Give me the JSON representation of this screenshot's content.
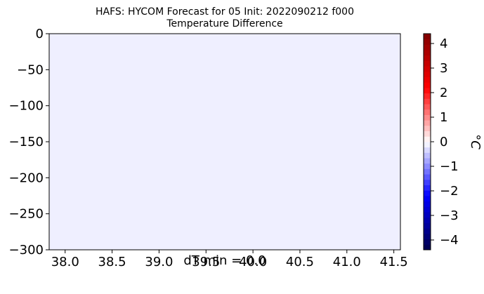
{
  "chart_data": {
    "type": "heatmap",
    "title": "HAFS: HYCOM Forecast for 05 Init: 2022090212 f000",
    "subtitle": "Temperature Difference",
    "xlabel": "dT min = 0.0",
    "ylabel": "",
    "x_ticks": [
      "38.0",
      "38.5",
      "39.0",
      "39.5",
      "40.0",
      "40.5",
      "41.0",
      "41.5"
    ],
    "x_tick_values": [
      38.0,
      38.5,
      39.0,
      39.5,
      40.0,
      40.5,
      41.0,
      41.5
    ],
    "y_ticks": [
      "0",
      "−50",
      "−100",
      "−150",
      "−200",
      "−250",
      "−300"
    ],
    "y_tick_values": [
      0,
      -50,
      -100,
      -150,
      -200,
      -250,
      -300
    ],
    "xlim": [
      37.83,
      41.57
    ],
    "ylim": [
      -300,
      0
    ],
    "field_value": 0.0,
    "field_color": "#efefff",
    "colorbar": {
      "label": "°C",
      "range": [
        -4.4,
        4.4
      ],
      "ticks": [
        "−4",
        "−3",
        "−2",
        "−1",
        "0",
        "1",
        "2",
        "3",
        "4"
      ],
      "tick_values": [
        -4,
        -3,
        -2,
        -1,
        0,
        1,
        2,
        3,
        4
      ],
      "colormap": "seismic",
      "levels": 40
    },
    "grid": false,
    "legend": "none"
  }
}
